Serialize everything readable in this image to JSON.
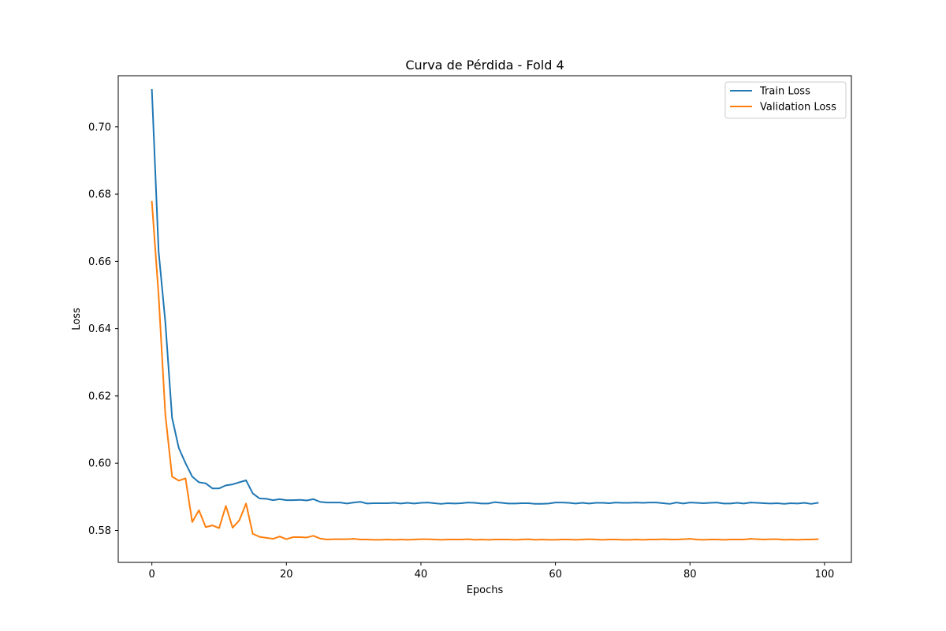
{
  "chart_data": {
    "type": "line",
    "title": "Curva de Pérdida - Fold 4",
    "xlabel": "Epochs",
    "ylabel": "Loss",
    "xlim": [
      -5,
      104
    ],
    "ylim": [
      0.5705,
      0.7152
    ],
    "xticks": [
      0,
      20,
      40,
      60,
      80,
      100
    ],
    "yticks": [
      0.58,
      0.6,
      0.62,
      0.64,
      0.66,
      0.68,
      0.7
    ],
    "ytick_labels": [
      "0.58",
      "0.60",
      "0.62",
      "0.64",
      "0.66",
      "0.68",
      "0.70"
    ],
    "grid": false,
    "legend_position": "top-right",
    "series": [
      {
        "name": "Train Loss",
        "color": "#1f77b4",
        "values": [
          0.711,
          0.663,
          0.642,
          0.6135,
          0.6045,
          0.6,
          0.596,
          0.5943,
          0.594,
          0.5925,
          0.5925,
          0.5934,
          0.5937,
          0.5943,
          0.5949,
          0.591,
          0.5895,
          0.5894,
          0.589,
          0.5893,
          0.589,
          0.589,
          0.5891,
          0.5889,
          0.5893,
          0.5885,
          0.5883,
          0.5883,
          0.5883,
          0.588,
          0.5883,
          0.5885,
          0.588,
          0.5881,
          0.5881,
          0.5881,
          0.5882,
          0.588,
          0.5882,
          0.588,
          0.5882,
          0.5883,
          0.5881,
          0.5879,
          0.5881,
          0.588,
          0.5881,
          0.5883,
          0.5882,
          0.588,
          0.588,
          0.5884,
          0.5882,
          0.588,
          0.588,
          0.5881,
          0.5881,
          0.5879,
          0.5879,
          0.588,
          0.5883,
          0.5883,
          0.5882,
          0.588,
          0.5882,
          0.588,
          0.5882,
          0.5882,
          0.5881,
          0.5883,
          0.5882,
          0.5882,
          0.5883,
          0.5882,
          0.5883,
          0.5883,
          0.5881,
          0.5879,
          0.5883,
          0.588,
          0.5883,
          0.5882,
          0.5881,
          0.5882,
          0.5883,
          0.588,
          0.588,
          0.5882,
          0.588,
          0.5883,
          0.5882,
          0.5881,
          0.588,
          0.5881,
          0.5879,
          0.5881,
          0.588,
          0.5882,
          0.5879,
          0.5882
        ]
      },
      {
        "name": "Validation Loss",
        "color": "#ff7f0e",
        "values": [
          0.6777,
          0.65,
          0.6145,
          0.596,
          0.5948,
          0.5955,
          0.5825,
          0.586,
          0.581,
          0.5815,
          0.5807,
          0.5873,
          0.5808,
          0.583,
          0.588,
          0.579,
          0.5781,
          0.5778,
          0.5775,
          0.5782,
          0.5774,
          0.578,
          0.578,
          0.5779,
          0.5784,
          0.5776,
          0.5773,
          0.5774,
          0.5774,
          0.5774,
          0.5775,
          0.5773,
          0.5773,
          0.5772,
          0.5772,
          0.5773,
          0.5772,
          0.5773,
          0.5772,
          0.5773,
          0.5774,
          0.5774,
          0.5773,
          0.5772,
          0.5773,
          0.5773,
          0.5773,
          0.5774,
          0.5772,
          0.5773,
          0.5772,
          0.5773,
          0.5773,
          0.5773,
          0.5772,
          0.5773,
          0.5774,
          0.5772,
          0.5773,
          0.5772,
          0.5772,
          0.5773,
          0.5773,
          0.5772,
          0.5773,
          0.5774,
          0.5773,
          0.5772,
          0.5773,
          0.5773,
          0.5772,
          0.5772,
          0.5773,
          0.5772,
          0.5773,
          0.5773,
          0.5774,
          0.5773,
          0.5773,
          0.5774,
          0.5775,
          0.5773,
          0.5772,
          0.5773,
          0.5773,
          0.5772,
          0.5773,
          0.5773,
          0.5773,
          0.5775,
          0.5774,
          0.5773,
          0.5774,
          0.5774,
          0.5772,
          0.5773,
          0.5772,
          0.5773,
          0.5773,
          0.5774
        ]
      }
    ]
  }
}
